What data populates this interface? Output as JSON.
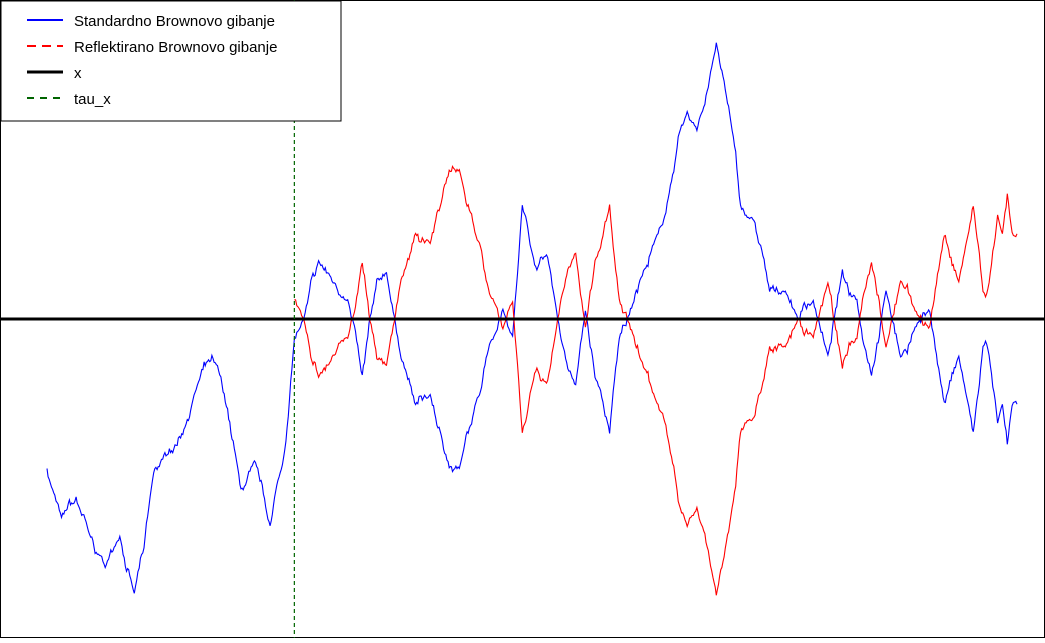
{
  "chart_data": {
    "type": "line",
    "title": "",
    "xlabel": "",
    "ylabel": "",
    "axes_visible": false,
    "grid": false,
    "legend_position": "top-left",
    "xlim": [
      0,
      1000
    ],
    "ylim": [
      -3.0,
      3.0
    ],
    "x_level": 0.0,
    "tau_x": 255,
    "series": [
      {
        "name": "Standardno Brownovo gibanje",
        "color": "#0000ff",
        "style": "solid",
        "role": "standard",
        "x": [
          0,
          15,
          30,
          45,
          60,
          75,
          90,
          100,
          110,
          125,
          140,
          155,
          170,
          185,
          200,
          215,
          230,
          245,
          255,
          265,
          280,
          295,
          310,
          325,
          340,
          350,
          365,
          380,
          395,
          410,
          425,
          440,
          455,
          470,
          480,
          490,
          505,
          515,
          530,
          545,
          555,
          565,
          580,
          590,
          605,
          615,
          630,
          645,
          660,
          670,
          690,
          705,
          715,
          730,
          745,
          760,
          775,
          790,
          805,
          820,
          835,
          850,
          865,
          880,
          895,
          910,
          925,
          940,
          955,
          965,
          970,
          975,
          980,
          985,
          990,
          995,
          1000
        ],
        "values": [
          -1.6,
          -2.1,
          -1.9,
          -2.3,
          -2.6,
          -2.3,
          -2.9,
          -2.4,
          -1.6,
          -1.4,
          -1.2,
          -0.7,
          -0.4,
          -0.9,
          -1.8,
          -1.5,
          -2.2,
          -1.4,
          -0.2,
          0.0,
          0.6,
          0.4,
          0.2,
          -0.6,
          0.4,
          0.5,
          -0.4,
          -0.9,
          -0.8,
          -1.4,
          -1.6,
          -1.0,
          -0.3,
          0.1,
          -0.2,
          1.2,
          0.5,
          0.7,
          -0.2,
          -0.7,
          0.1,
          -0.6,
          -1.2,
          -0.2,
          0.2,
          0.5,
          0.9,
          1.5,
          2.2,
          2.0,
          2.9,
          2.1,
          1.2,
          1.0,
          0.3,
          0.3,
          0.0,
          0.2,
          -0.4,
          0.5,
          0.2,
          -0.6,
          0.3,
          -0.4,
          -0.1,
          0.1,
          -0.9,
          -0.4,
          -1.2,
          -0.3,
          -0.3,
          -0.7,
          -1.1,
          -0.9,
          -1.3,
          -0.9,
          -0.9
        ]
      },
      {
        "name": "Reflektirano Brownovo gibanje",
        "color": "#ff0000",
        "style": "dashed",
        "role": "reflected",
        "from_tau": true
      },
      {
        "name": "x",
        "color": "#000000",
        "style": "solid",
        "role": "level"
      },
      {
        "name": "tau_x",
        "color": "#006400",
        "style": "dashed",
        "role": "tau"
      }
    ]
  }
}
